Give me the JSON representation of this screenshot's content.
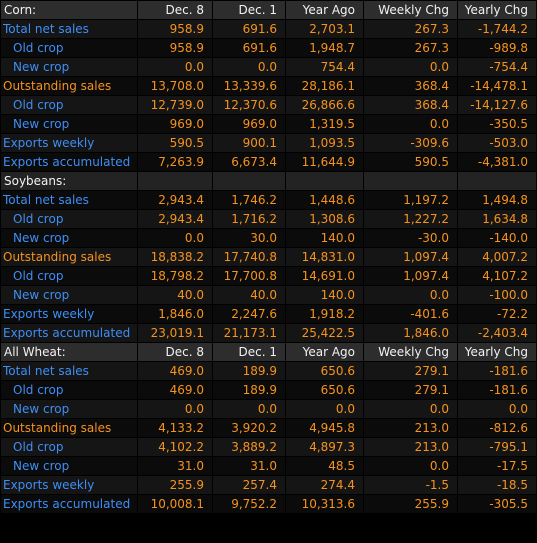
{
  "columns": [
    "Dec. 8",
    "Dec. 1",
    "Year Ago",
    "Weekly Chg",
    "Yearly Chg"
  ],
  "sections": [
    {
      "title": "Corn:",
      "show_columns": true,
      "rows": [
        {
          "label": "Total net sales",
          "values": [
            "958.9",
            "691.6",
            "2,703.1",
            "267.3",
            "-1,744.2"
          ]
        },
        {
          "label": "Old crop",
          "values": [
            "958.9",
            "691.6",
            "1,948.7",
            "267.3",
            "-989.8"
          ]
        },
        {
          "label": "New crop",
          "values": [
            "0.0",
            "0.0",
            "754.4",
            "0.0",
            "-754.4"
          ]
        },
        {
          "label": "Outstanding sales",
          "values": [
            "13,708.0",
            "13,339.6",
            "28,186.1",
            "368.4",
            "-14,478.1"
          ]
        },
        {
          "label": "Old crop",
          "values": [
            "12,739.0",
            "12,370.6",
            "26,866.6",
            "368.4",
            "-14,127.6"
          ]
        },
        {
          "label": "New crop",
          "values": [
            "969.0",
            "969.0",
            "1,319.5",
            "0.0",
            "-350.5"
          ]
        },
        {
          "label": "Exports weekly",
          "values": [
            "590.5",
            "900.1",
            "1,093.5",
            "-309.6",
            "-503.0"
          ]
        },
        {
          "label": "Exports accumulated",
          "values": [
            "7,263.9",
            "6,673.4",
            "11,644.9",
            "590.5",
            "-4,381.0"
          ]
        }
      ]
    },
    {
      "title": "Soybeans:",
      "show_columns": false,
      "rows": [
        {
          "label": "Total net sales",
          "values": [
            "2,943.4",
            "1,746.2",
            "1,448.6",
            "1,197.2",
            "1,494.8"
          ]
        },
        {
          "label": "Old crop",
          "values": [
            "2,943.4",
            "1,716.2",
            "1,308.6",
            "1,227.2",
            "1,634.8"
          ]
        },
        {
          "label": "New crop",
          "values": [
            "0.0",
            "30.0",
            "140.0",
            "-30.0",
            "-140.0"
          ]
        },
        {
          "label": "Outstanding sales",
          "values": [
            "18,838.2",
            "17,740.8",
            "14,831.0",
            "1,097.4",
            "4,007.2"
          ]
        },
        {
          "label": "Old crop",
          "values": [
            "18,798.2",
            "17,700.8",
            "14,691.0",
            "1,097.4",
            "4,107.2"
          ]
        },
        {
          "label": "New crop",
          "values": [
            "40.0",
            "40.0",
            "140.0",
            "0.0",
            "-100.0"
          ]
        },
        {
          "label": "Exports weekly",
          "values": [
            "1,846.0",
            "2,247.6",
            "1,918.2",
            "-401.6",
            "-72.2"
          ]
        },
        {
          "label": "Exports accumulated",
          "values": [
            "23,019.1",
            "21,173.1",
            "25,422.5",
            "1,846.0",
            "-2,403.4"
          ]
        }
      ]
    },
    {
      "title": "All Wheat:",
      "show_columns": true,
      "rows": [
        {
          "label": "Total net sales",
          "values": [
            "469.0",
            "189.9",
            "650.6",
            "279.1",
            "-181.6"
          ]
        },
        {
          "label": "Old crop",
          "values": [
            "469.0",
            "189.9",
            "650.6",
            "279.1",
            "-181.6"
          ]
        },
        {
          "label": "New crop",
          "values": [
            "0.0",
            "0.0",
            "0.0",
            "0.0",
            "0.0"
          ]
        },
        {
          "label": "Outstanding sales",
          "values": [
            "4,133.2",
            "3,920.2",
            "4,945.8",
            "213.0",
            "-812.6"
          ]
        },
        {
          "label": "Old crop",
          "values": [
            "4,102.2",
            "3,889.2",
            "4,897.3",
            "213.0",
            "-795.1"
          ]
        },
        {
          "label": "New crop",
          "values": [
            "31.0",
            "31.0",
            "48.5",
            "0.0",
            "-17.5"
          ]
        },
        {
          "label": "Exports weekly",
          "values": [
            "255.9",
            "257.4",
            "274.4",
            "-1.5",
            "-18.5"
          ]
        },
        {
          "label": "Exports accumulated",
          "values": [
            "10,008.1",
            "9,752.2",
            "10,313.6",
            "255.9",
            "-305.5"
          ]
        }
      ]
    }
  ],
  "colors": {
    "label_blue": "#3f8ef5",
    "value_orange": "#f6931e",
    "header_text": "#f2f2f2"
  }
}
